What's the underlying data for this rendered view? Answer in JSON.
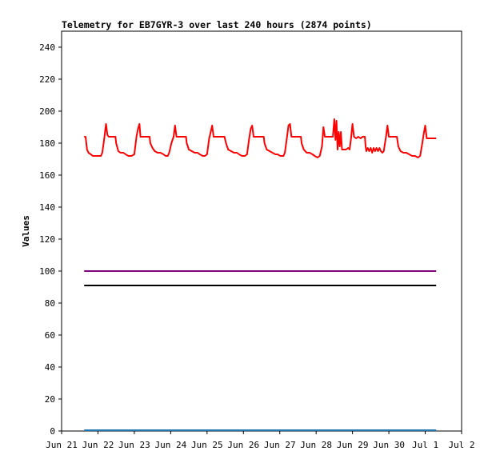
{
  "chart_data": {
    "type": "line",
    "title": "Telemetry for EB7GYR-3 over last 240 hours (2874 points)",
    "xlabel": "",
    "ylabel": "Values",
    "ylim": [
      0,
      250
    ],
    "yticks": [
      0,
      20,
      40,
      60,
      80,
      100,
      120,
      140,
      160,
      180,
      200,
      220,
      240
    ],
    "xlim": [
      0,
      11
    ],
    "x_ticks": [
      {
        "x": 0,
        "label": "Jun 21"
      },
      {
        "x": 1,
        "label": "Jun 22"
      },
      {
        "x": 2,
        "label": "Jun 23"
      },
      {
        "x": 3,
        "label": "Jun 24"
      },
      {
        "x": 4,
        "label": "Jun 25"
      },
      {
        "x": 5,
        "label": "Jun 26"
      },
      {
        "x": 6,
        "label": "Jun 27"
      },
      {
        "x": 7,
        "label": "Jun 28"
      },
      {
        "x": 8,
        "label": "Jun 29"
      },
      {
        "x": 9,
        "label": "Jun 30"
      },
      {
        "x": 10,
        "label": "Jul 1"
      },
      {
        "x": 11,
        "label": "Jul 2"
      }
    ],
    "grid": false,
    "legend": "none",
    "series": [
      {
        "color": "#ff0000",
        "points": [
          [
            0.62,
            184
          ],
          [
            0.66,
            184
          ],
          [
            0.7,
            176
          ],
          [
            0.74,
            174
          ],
          [
            0.8,
            173
          ],
          [
            0.86,
            172
          ],
          [
            0.94,
            172
          ],
          [
            1.0,
            172
          ],
          [
            1.08,
            172
          ],
          [
            1.12,
            174
          ],
          [
            1.18,
            184
          ],
          [
            1.22,
            192
          ],
          [
            1.26,
            185
          ],
          [
            1.3,
            184
          ],
          [
            1.36,
            184
          ],
          [
            1.44,
            184
          ],
          [
            1.48,
            184
          ],
          [
            1.5,
            180
          ],
          [
            1.56,
            175
          ],
          [
            1.62,
            174
          ],
          [
            1.7,
            174
          ],
          [
            1.76,
            173
          ],
          [
            1.84,
            172
          ],
          [
            1.92,
            172
          ],
          [
            2.0,
            173
          ],
          [
            2.06,
            184
          ],
          [
            2.1,
            189
          ],
          [
            2.14,
            192
          ],
          [
            2.17,
            184
          ],
          [
            2.24,
            184
          ],
          [
            2.32,
            184
          ],
          [
            2.42,
            184
          ],
          [
            2.44,
            180
          ],
          [
            2.5,
            177
          ],
          [
            2.56,
            175
          ],
          [
            2.64,
            174
          ],
          [
            2.72,
            174
          ],
          [
            2.8,
            173
          ],
          [
            2.86,
            172
          ],
          [
            2.92,
            172
          ],
          [
            2.96,
            174
          ],
          [
            3.02,
            180
          ],
          [
            3.08,
            184
          ],
          [
            3.12,
            191
          ],
          [
            3.16,
            184
          ],
          [
            3.24,
            184
          ],
          [
            3.32,
            184
          ],
          [
            3.42,
            184
          ],
          [
            3.44,
            180
          ],
          [
            3.5,
            176
          ],
          [
            3.58,
            175
          ],
          [
            3.66,
            174
          ],
          [
            3.74,
            174
          ],
          [
            3.8,
            173
          ],
          [
            3.88,
            172
          ],
          [
            3.94,
            172
          ],
          [
            4.0,
            173
          ],
          [
            4.06,
            183
          ],
          [
            4.1,
            187
          ],
          [
            4.14,
            191
          ],
          [
            4.18,
            184
          ],
          [
            4.28,
            184
          ],
          [
            4.38,
            184
          ],
          [
            4.48,
            184
          ],
          [
            4.52,
            180
          ],
          [
            4.58,
            176
          ],
          [
            4.66,
            175
          ],
          [
            4.74,
            174
          ],
          [
            4.82,
            174
          ],
          [
            4.88,
            173
          ],
          [
            4.96,
            172
          ],
          [
            5.04,
            172
          ],
          [
            5.1,
            173
          ],
          [
            5.16,
            183
          ],
          [
            5.2,
            189
          ],
          [
            5.24,
            191
          ],
          [
            5.28,
            184
          ],
          [
            5.38,
            184
          ],
          [
            5.48,
            184
          ],
          [
            5.56,
            184
          ],
          [
            5.58,
            180
          ],
          [
            5.64,
            176
          ],
          [
            5.72,
            175
          ],
          [
            5.8,
            174
          ],
          [
            5.88,
            173
          ],
          [
            5.94,
            173
          ],
          [
            6.02,
            172
          ],
          [
            6.1,
            172
          ],
          [
            6.14,
            174
          ],
          [
            6.2,
            184
          ],
          [
            6.24,
            191
          ],
          [
            6.28,
            192
          ],
          [
            6.32,
            184
          ],
          [
            6.42,
            184
          ],
          [
            6.5,
            184
          ],
          [
            6.58,
            184
          ],
          [
            6.6,
            180
          ],
          [
            6.66,
            176
          ],
          [
            6.74,
            174
          ],
          [
            6.82,
            174
          ],
          [
            6.9,
            173
          ],
          [
            6.96,
            172
          ],
          [
            7.04,
            171
          ],
          [
            7.1,
            172
          ],
          [
            7.16,
            178
          ],
          [
            7.2,
            190
          ],
          [
            7.24,
            184
          ],
          [
            7.3,
            184
          ],
          [
            7.4,
            184
          ],
          [
            7.46,
            184
          ],
          [
            7.5,
            195
          ],
          [
            7.53,
            182
          ],
          [
            7.56,
            194
          ],
          [
            7.59,
            176
          ],
          [
            7.62,
            187
          ],
          [
            7.65,
            178
          ],
          [
            7.68,
            187
          ],
          [
            7.71,
            176
          ],
          [
            7.76,
            176
          ],
          [
            7.82,
            176
          ],
          [
            7.88,
            177
          ],
          [
            7.92,
            176
          ],
          [
            7.96,
            183
          ],
          [
            8.0,
            192
          ],
          [
            8.04,
            184
          ],
          [
            8.1,
            183
          ],
          [
            8.16,
            184
          ],
          [
            8.22,
            183
          ],
          [
            8.28,
            184
          ],
          [
            8.34,
            184
          ],
          [
            8.36,
            178
          ],
          [
            8.38,
            175
          ],
          [
            8.42,
            177
          ],
          [
            8.46,
            175
          ],
          [
            8.5,
            177
          ],
          [
            8.54,
            174
          ],
          [
            8.58,
            177
          ],
          [
            8.62,
            175
          ],
          [
            8.66,
            177
          ],
          [
            8.7,
            175
          ],
          [
            8.74,
            177
          ],
          [
            8.78,
            175
          ],
          [
            8.82,
            174
          ],
          [
            8.86,
            175
          ],
          [
            8.92,
            184
          ],
          [
            8.96,
            191
          ],
          [
            9.0,
            184
          ],
          [
            9.08,
            184
          ],
          [
            9.16,
            184
          ],
          [
            9.22,
            184
          ],
          [
            9.26,
            178
          ],
          [
            9.32,
            175
          ],
          [
            9.4,
            174
          ],
          [
            9.48,
            174
          ],
          [
            9.56,
            173
          ],
          [
            9.64,
            172
          ],
          [
            9.72,
            172
          ],
          [
            9.8,
            171
          ],
          [
            9.86,
            172
          ],
          [
            9.92,
            180
          ],
          [
            9.96,
            186
          ],
          [
            10.0,
            191
          ],
          [
            10.04,
            183
          ],
          [
            10.12,
            183
          ],
          [
            10.22,
            183
          ],
          [
            10.3,
            183
          ]
        ]
      },
      {
        "color": "#800080",
        "points": [
          [
            0.62,
            100
          ],
          [
            10.3,
            100
          ]
        ]
      },
      {
        "color": "#000000",
        "points": [
          [
            0.62,
            91
          ],
          [
            10.3,
            91
          ]
        ]
      },
      {
        "color": "#1f77b4",
        "points": [
          [
            0.62,
            0.5
          ],
          [
            10.3,
            0.5
          ]
        ]
      }
    ]
  }
}
